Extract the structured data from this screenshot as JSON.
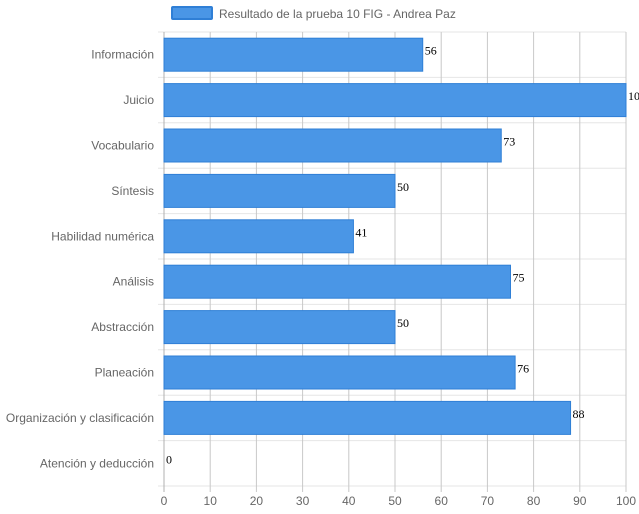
{
  "chart_data": {
    "type": "bar",
    "orientation": "horizontal",
    "categories": [
      "Información",
      "Juicio",
      "Vocabulario",
      "Síntesis",
      "Habilidad numérica",
      "Análisis",
      "Abstracción",
      "Planeación",
      "Organización y clasificación",
      "Atención y deducción"
    ],
    "series": [
      {
        "name": "Resultado de la prueba 10 FIG - Andrea Paz",
        "values": [
          56,
          100,
          73,
          50,
          41,
          75,
          50,
          76,
          88,
          0
        ]
      }
    ],
    "xlim": [
      0,
      100
    ],
    "xticks": [
      0,
      10,
      20,
      30,
      40,
      50,
      60,
      70,
      80,
      90,
      100
    ],
    "grid": true,
    "legend_position": "top",
    "colors": {
      "bar_fill": "#4a96e6",
      "bar_stroke": "#2f7fd6",
      "grid": "#e6e6e6",
      "grid_major": "#c8c8c8"
    }
  }
}
